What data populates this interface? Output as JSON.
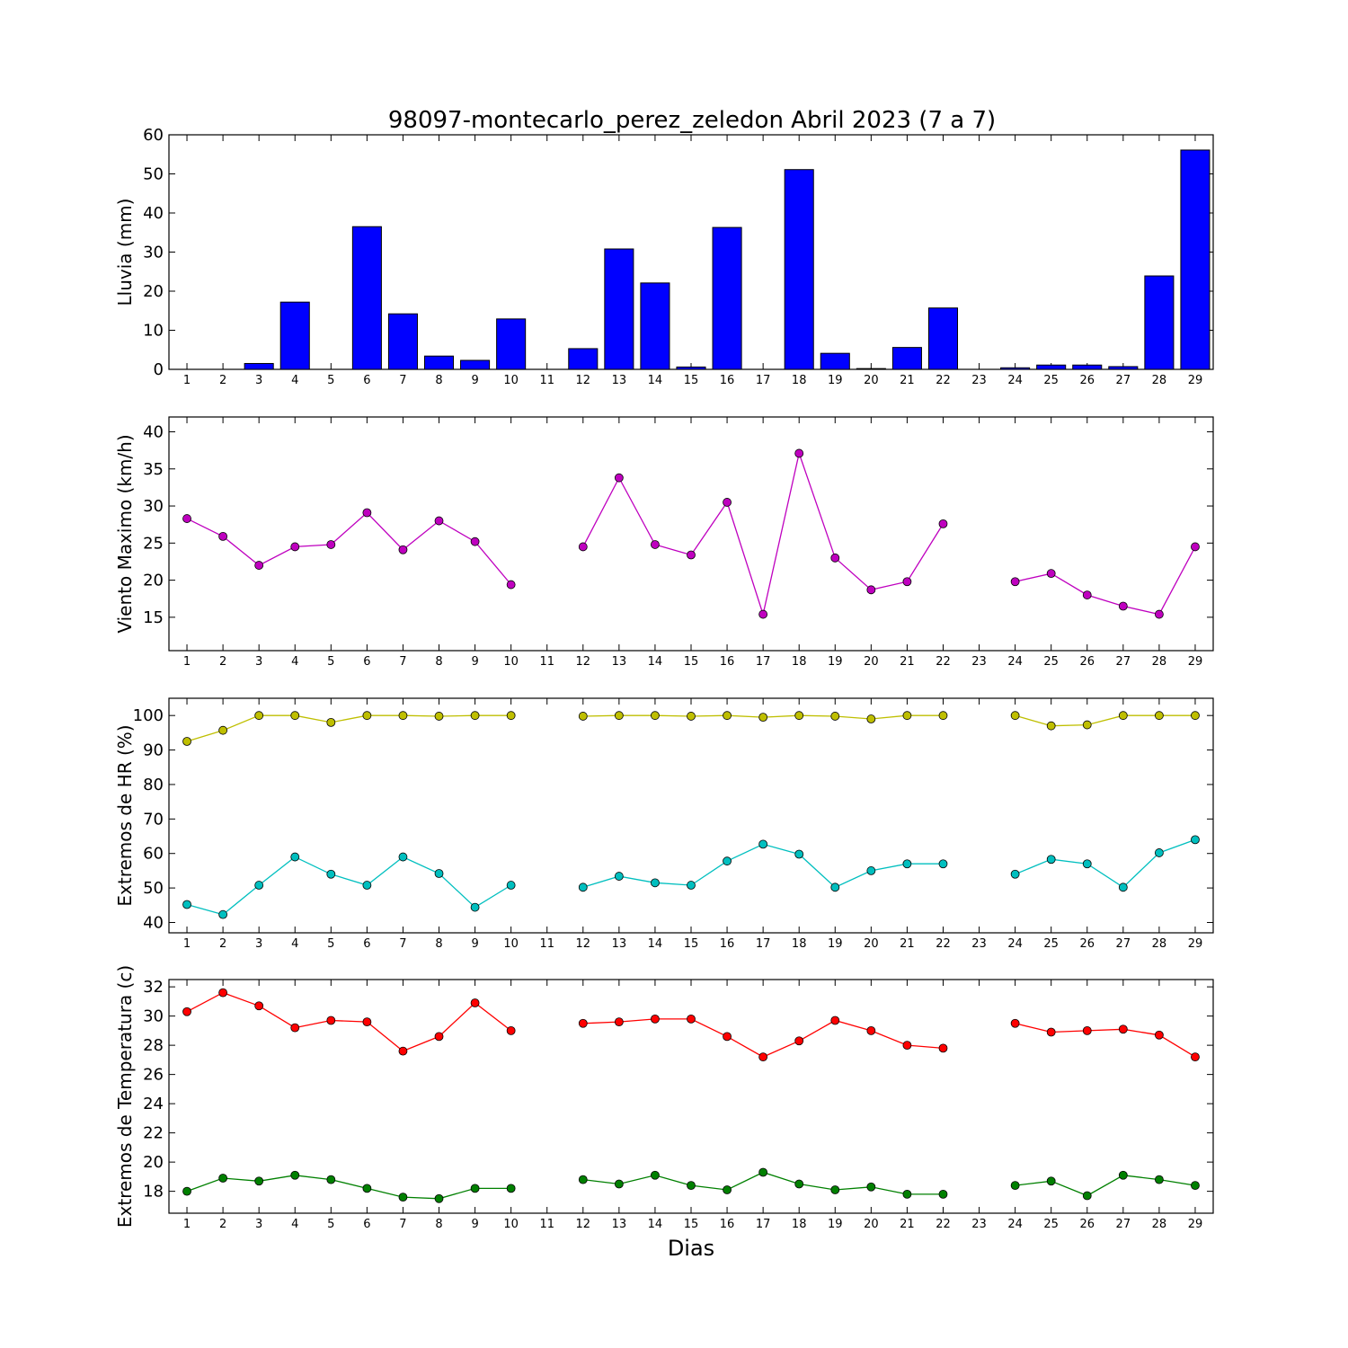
{
  "title": "98097-montecarlo_perez_zeledon Abril 2023  (7 a 7)",
  "xlabel": "Dias",
  "colors": {
    "rain": "#0000ff",
    "wind": "#bf00bf",
    "hr_max": "#bfbf00",
    "hr_min": "#00bfbf",
    "temp_max": "#ff0000",
    "temp_min": "#008000"
  },
  "chart_data": [
    {
      "type": "bar",
      "ylabel": "Lluvia (mm)",
      "categories": [
        1,
        2,
        3,
        4,
        5,
        6,
        7,
        8,
        9,
        10,
        11,
        12,
        13,
        14,
        15,
        16,
        17,
        18,
        19,
        20,
        21,
        22,
        23,
        24,
        25,
        26,
        27,
        28,
        29
      ],
      "values": [
        0,
        0,
        1.5,
        17.2,
        0,
        36.5,
        14.2,
        3.4,
        2.3,
        12.9,
        null,
        5.3,
        30.8,
        22.1,
        0.6,
        36.3,
        0,
        51.1,
        4.1,
        0.2,
        5.6,
        15.7,
        null,
        0.4,
        1.1,
        1.1,
        0.7,
        23.9,
        56.1
      ],
      "ylim": [
        0,
        60
      ],
      "yticks": [
        0,
        10,
        20,
        30,
        40,
        50,
        60
      ],
      "xlim": [
        0.5,
        29.5
      ],
      "series_color": "rain"
    },
    {
      "type": "line",
      "ylabel": "Viento Maximo (km/h)",
      "categories": [
        1,
        2,
        3,
        4,
        5,
        6,
        7,
        8,
        9,
        10,
        11,
        12,
        13,
        14,
        15,
        16,
        17,
        18,
        19,
        20,
        21,
        22,
        23,
        24,
        25,
        26,
        27,
        28,
        29
      ],
      "series": [
        {
          "values": [
            28.3,
            25.9,
            22.0,
            24.5,
            24.8,
            29.1,
            24.1,
            28.0,
            25.2,
            19.4,
            null,
            24.5,
            33.8,
            24.8,
            23.4,
            30.5,
            15.4,
            37.1,
            23.0,
            18.7,
            19.8,
            27.6,
            null,
            19.8,
            20.9,
            18.0,
            16.5,
            15.4,
            24.5
          ],
          "color": "wind"
        }
      ],
      "ylim": [
        10.5,
        42
      ],
      "yticks": [
        15,
        20,
        25,
        30,
        35,
        40
      ],
      "xlim": [
        0.5,
        29.5
      ]
    },
    {
      "type": "line",
      "ylabel": "Extremos de HR (%)",
      "categories": [
        1,
        2,
        3,
        4,
        5,
        6,
        7,
        8,
        9,
        10,
        11,
        12,
        13,
        14,
        15,
        16,
        17,
        18,
        19,
        20,
        21,
        22,
        23,
        24,
        25,
        26,
        27,
        28,
        29
      ],
      "series": [
        {
          "values": [
            92.5,
            95.7,
            100,
            100,
            98.0,
            100,
            100,
            99.8,
            100,
            100,
            null,
            99.8,
            100,
            100,
            99.8,
            100,
            99.5,
            100,
            99.8,
            99.0,
            100,
            100,
            null,
            100,
            97.0,
            97.3,
            100,
            100,
            100
          ],
          "color": "hr_max"
        },
        {
          "values": [
            45.2,
            42.3,
            50.8,
            59.0,
            54.0,
            50.8,
            59.0,
            54.2,
            44.4,
            50.8,
            null,
            50.2,
            53.4,
            51.5,
            50.8,
            57.8,
            62.7,
            59.8,
            50.2,
            55.0,
            57.0,
            57.0,
            null,
            54.0,
            58.3,
            57.0,
            50.2,
            60.2,
            64.0
          ],
          "color": "hr_min"
        }
      ],
      "ylim": [
        37,
        105
      ],
      "yticks": [
        40,
        50,
        60,
        70,
        80,
        90,
        100
      ],
      "xlim": [
        0.5,
        29.5
      ]
    },
    {
      "type": "line",
      "ylabel": "Extremos de Temperatura (c)",
      "categories": [
        1,
        2,
        3,
        4,
        5,
        6,
        7,
        8,
        9,
        10,
        11,
        12,
        13,
        14,
        15,
        16,
        17,
        18,
        19,
        20,
        21,
        22,
        23,
        24,
        25,
        26,
        27,
        28,
        29
      ],
      "series": [
        {
          "values": [
            30.3,
            31.6,
            30.7,
            29.2,
            29.7,
            29.6,
            27.6,
            28.6,
            30.9,
            29.0,
            null,
            29.5,
            29.6,
            29.8,
            29.8,
            28.6,
            27.2,
            28.3,
            29.7,
            29.0,
            28.0,
            27.8,
            null,
            29.5,
            28.9,
            29.0,
            29.1,
            28.7,
            27.2
          ],
          "color": "temp_max"
        },
        {
          "values": [
            18.0,
            18.9,
            18.7,
            19.1,
            18.8,
            18.2,
            17.6,
            17.5,
            18.2,
            18.2,
            null,
            18.8,
            18.5,
            19.1,
            18.4,
            18.1,
            19.3,
            18.5,
            18.1,
            18.3,
            17.8,
            17.8,
            null,
            18.4,
            18.7,
            17.7,
            19.1,
            18.8,
            18.4
          ],
          "color": "temp_min"
        }
      ],
      "ylim": [
        16.5,
        32.5
      ],
      "yticks": [
        18,
        20,
        22,
        24,
        26,
        28,
        30,
        32
      ],
      "xlim": [
        0.5,
        29.5
      ]
    }
  ]
}
